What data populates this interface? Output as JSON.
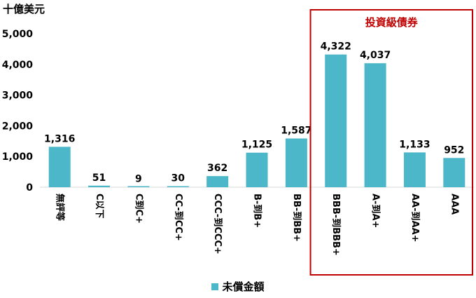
{
  "unit_label": "十億美元",
  "highlight_label": "投資級債券",
  "colors": {
    "bar": "#4BB7C8",
    "highlight": "#C00000",
    "axis": "#D9D9D9"
  },
  "legend": {
    "label": "未償金額"
  },
  "chart_data": {
    "type": "bar",
    "categories": [
      "無評等",
      "C以下",
      "C到C+",
      "CC-到CC+",
      "CCC-到CCC+",
      "B-到B+",
      "BB-到BB+",
      "BBB-到BBB+",
      "A-到A+",
      "AA-到AA+",
      "AAA"
    ],
    "series": [
      {
        "name": "未償金額",
        "values": [
          1316,
          51,
          9,
          30,
          362,
          1125,
          1587,
          4322,
          4037,
          1133,
          952
        ]
      }
    ],
    "data_labels": [
      "1,316",
      "51",
      "9",
      "30",
      "362",
      "1,125",
      "1,587",
      "4,322",
      "4,037",
      "1,133",
      "952"
    ],
    "ylim": [
      0,
      5000
    ],
    "yticks": [
      0,
      1000,
      2000,
      3000,
      4000,
      5000
    ],
    "ytick_labels": [
      "0",
      "1,000",
      "2,000",
      "3,000",
      "4,000",
      "5,000"
    ],
    "grid": false,
    "highlighted_categories": [
      "BBB-到BBB+",
      "A-到A+",
      "AA-到AA+",
      "AAA"
    ],
    "legend_position": "bottom"
  }
}
